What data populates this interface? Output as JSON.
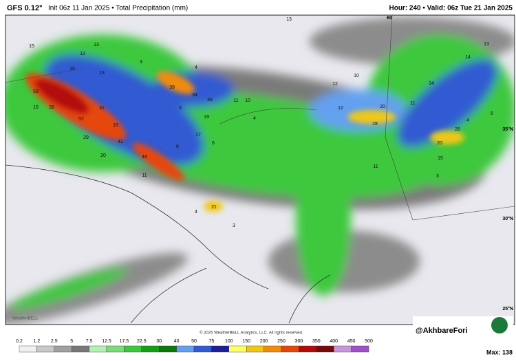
{
  "header": {
    "model": "GFS 0.12°",
    "info": "Init 06z 11 Jan 2025 • Total Precipitation (mm)",
    "valid": "Hour: 240 • Valid: 06z Tue 21 Jan 2025"
  },
  "map": {
    "labels": [
      "15",
      "12",
      "15",
      "13",
      "53",
      "39",
      "15",
      "31",
      "52",
      "18",
      "29",
      "41",
      "20",
      "44",
      "11",
      "39",
      "34",
      "33",
      "11",
      "10",
      "3",
      "19",
      "17",
      "6",
      "4",
      "21",
      "3",
      "4",
      "6",
      "12",
      "10",
      "12",
      "20",
      "28",
      "11",
      "14",
      "13",
      "14",
      "5",
      "26",
      "20",
      "15",
      "3",
      "11",
      "4",
      "13",
      "3",
      "4",
      "13"
    ],
    "grid_labels": [
      "60",
      "35°N",
      "30°N",
      "25°N"
    ],
    "logo": "WeatherBELL",
    "copyright": "© 2025 WeatherBELL Analytics, LLC. All rights reserved.",
    "handle": "@AkhbareFori"
  },
  "colorbar": {
    "ticks": [
      0.2,
      1.2,
      2.5,
      5,
      7.5,
      12.5,
      17.5,
      22.5,
      30,
      40,
      50,
      75,
      100,
      150,
      200,
      250,
      300,
      350,
      400,
      450,
      500
    ],
    "colors": [
      "#f0f0f0",
      "#c8c8c8",
      "#a0a0a0",
      "#787878",
      "#b4f0b4",
      "#78dc78",
      "#3cc83c",
      "#14a014",
      "#0a780a",
      "#64a0f0",
      "#325ad2",
      "#1e1e96",
      "#ffff64",
      "#f0c814",
      "#f08c0a",
      "#e6460a",
      "#b40a0a",
      "#780a0a",
      "#c896dc",
      "#a050c8"
    ],
    "max": "Max: 138"
  }
}
